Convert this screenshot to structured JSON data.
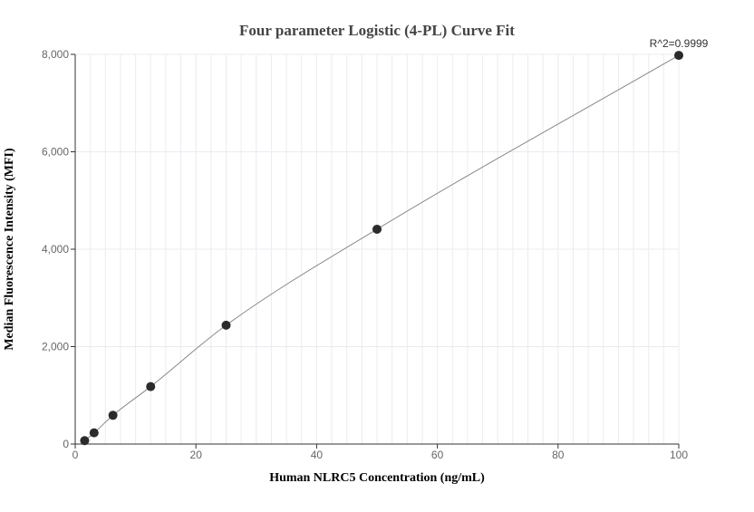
{
  "chart_data": {
    "type": "scatter",
    "title": "Four parameter Logistic (4-PL) Curve Fit",
    "xlabel": "Human NLRC5 Concentration (ng/mL)",
    "ylabel": "Median Fluorescence Intensity (MFI)",
    "xlim": [
      0,
      100
    ],
    "ylim": [
      0,
      8000
    ],
    "x_ticks": [
      "0",
      "20",
      "40",
      "60",
      "80",
      "100"
    ],
    "y_ticks": [
      "0",
      "2,000",
      "4,000",
      "6,000",
      "8,000"
    ],
    "grid": true,
    "series": [
      {
        "x": [
          1.5625,
          3.125,
          6.25,
          12.5,
          25,
          50,
          100
        ],
        "y": [
          70,
          230,
          590,
          1180,
          2440,
          4410,
          7980
        ],
        "fit": "4-PL",
        "point_color": "#2b2b2b",
        "line_color": "#888888"
      }
    ],
    "annotation": "R^2=0.9999"
  }
}
